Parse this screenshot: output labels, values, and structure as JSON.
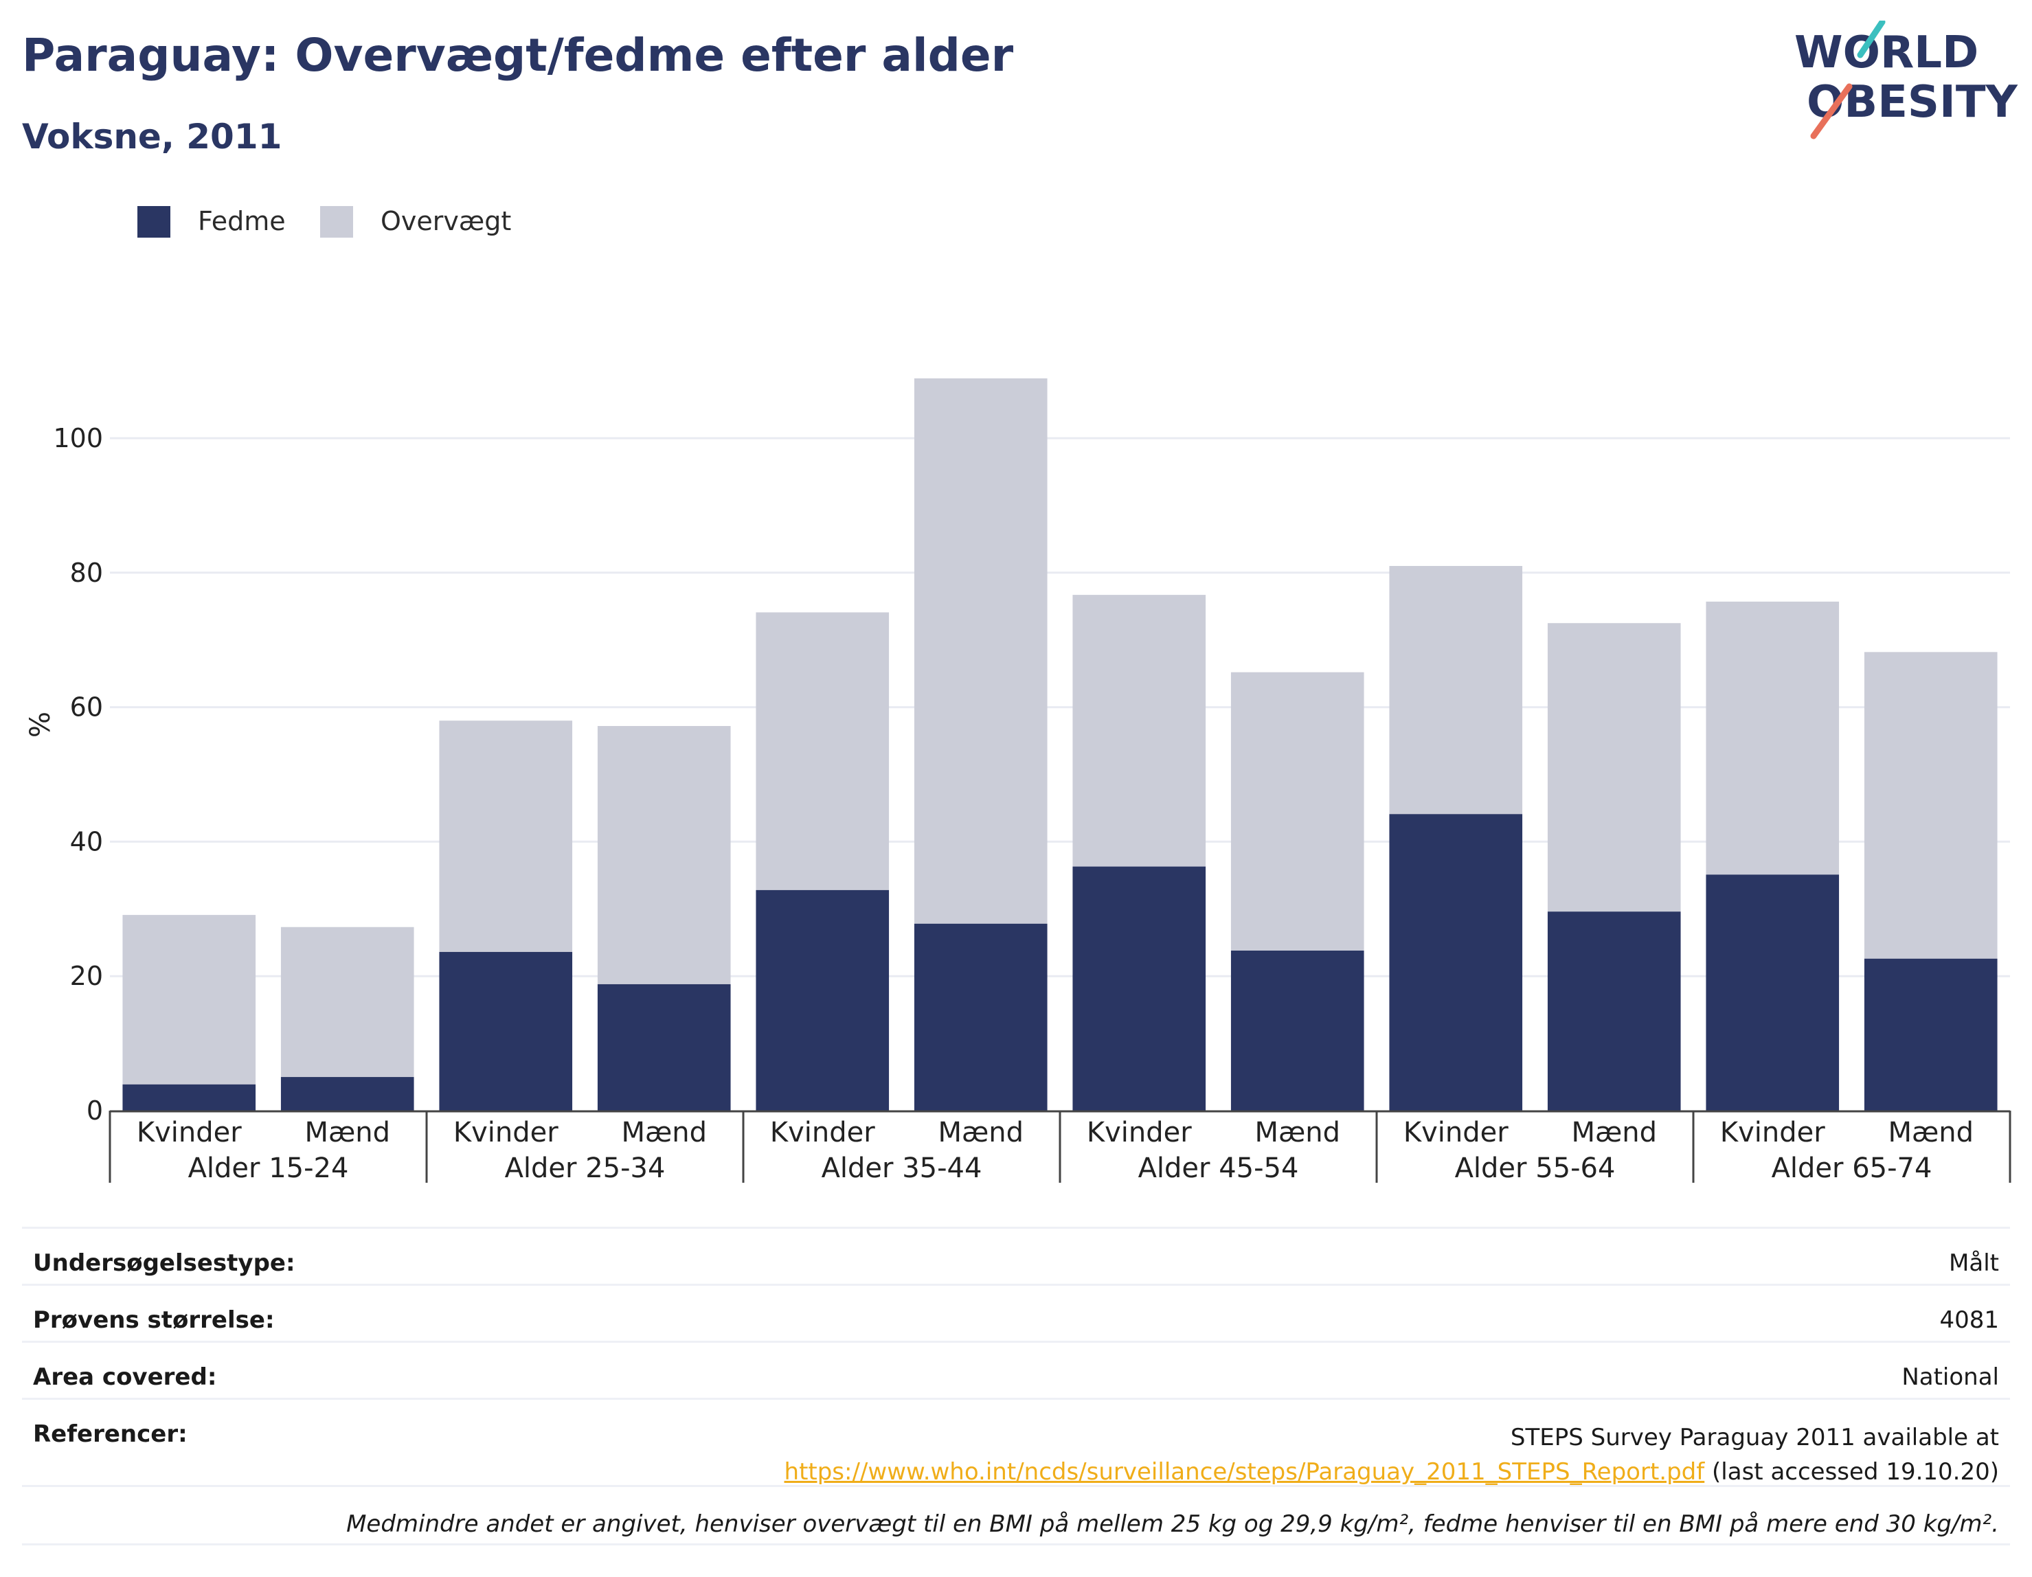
{
  "header": {
    "title": "Paraguay: Overvægt/fedme efter alder",
    "subtitle": "Voksne, 2011"
  },
  "logo": {
    "line1": "WORLD",
    "line2": "OBESITY",
    "colors": {
      "text": "#2a3663",
      "accent1": "#3bbfbf",
      "accent2": "#e8705a"
    }
  },
  "colors": {
    "fedme": "#2a3663",
    "overvaegt": "#cbcdd8",
    "gridline": "#e9ebf2",
    "axis": "#444444",
    "link": "#f0ad19"
  },
  "legend": {
    "items": [
      {
        "label": "Fedme",
        "color": "#2a3663"
      },
      {
        "label": "Overvægt",
        "color": "#cbcdd8"
      }
    ]
  },
  "chart_data": {
    "type": "bar",
    "stacked": true,
    "ylabel": "%",
    "ylim": [
      0,
      112
    ],
    "yticks": [
      0,
      20,
      40,
      60,
      80,
      100
    ],
    "grid": true,
    "legend_position": "top-left",
    "groups": [
      "Alder 15-24",
      "Alder 25-34",
      "Alder 35-44",
      "Alder 45-54",
      "Alder 55-64",
      "Alder 65-74"
    ],
    "categories": [
      "Kvinder",
      "Mænd",
      "Kvinder",
      "Mænd",
      "Kvinder",
      "Mænd",
      "Kvinder",
      "Mænd",
      "Kvinder",
      "Mænd",
      "Kvinder",
      "Mænd"
    ],
    "series": [
      {
        "name": "Fedme",
        "values": [
          3.9,
          5.0,
          23.6,
          18.8,
          32.8,
          27.8,
          36.3,
          23.8,
          44.1,
          29.6,
          35.1,
          22.6
        ]
      },
      {
        "name": "Overvægt",
        "values": [
          25.2,
          22.3,
          34.4,
          38.4,
          41.3,
          81.1,
          40.4,
          41.4,
          36.9,
          42.9,
          40.6,
          45.6
        ]
      }
    ]
  },
  "info": {
    "survey_type_label": "Undersøgelsestype:",
    "survey_type_value": "Målt",
    "sample_size_label": "Prøvens størrelse:",
    "sample_size_value": "4081",
    "area_label": "Area covered:",
    "area_value": "National",
    "references_label": "Referencer:",
    "references_prefix": "STEPS Survey Paraguay 2011 available at ",
    "references_link": "https://www.who.int/ncds/surveillance/steps/Paraguay_2011_STEPS_Report.pdf",
    "references_suffix": " (last accessed 19.10.20)",
    "note": "Medmindre andet er angivet, henviser overvægt til en BMI på mellem 25 kg og 29,9 kg/m², fedme henviser til en BMI på mere end 30 kg/m²."
  }
}
